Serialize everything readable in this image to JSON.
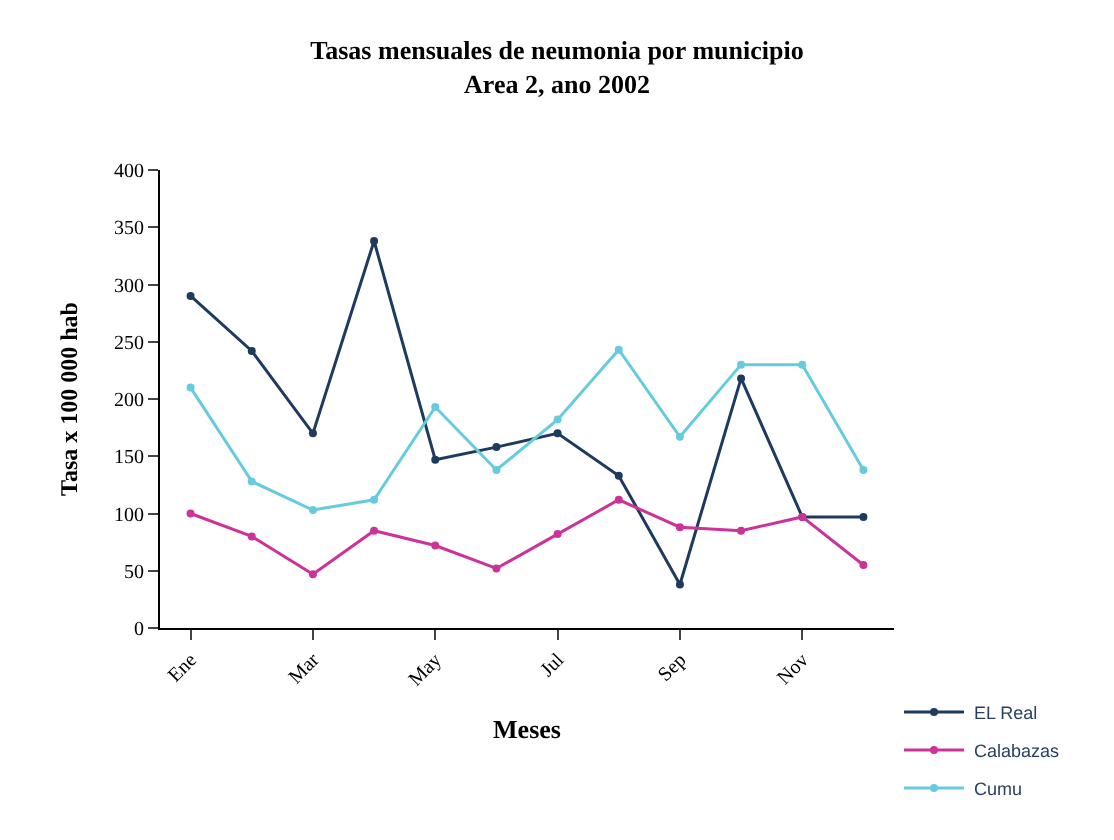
{
  "chart_data": {
    "type": "line",
    "title": "Tasas mensuales de neumonia por municipio",
    "subtitle": "Area 2, ano 2002",
    "xlabel": "Meses",
    "ylabel": "Tasa x 100 000 hab",
    "categories": [
      "Ene",
      null,
      "Mar",
      null,
      "May",
      null,
      "Jul",
      null,
      "Sep",
      null,
      "Nov",
      null
    ],
    "series": [
      {
        "name": "EL Real",
        "color": "#1f3a5f",
        "values": [
          290,
          242,
          170,
          338,
          147,
          158,
          170,
          133,
          38,
          218,
          97,
          97
        ]
      },
      {
        "name": "Calabazas",
        "color": "#cc3399",
        "values": [
          100,
          80,
          47,
          85,
          72,
          52,
          82,
          112,
          88,
          85,
          97,
          55
        ]
      },
      {
        "name": "Cumu",
        "color": "#66ccdd",
        "values": [
          210,
          128,
          103,
          112,
          193,
          138,
          182,
          243,
          167,
          230,
          230,
          138
        ]
      }
    ],
    "ylim": [
      0,
      400
    ],
    "yticks": [
      0,
      50,
      100,
      150,
      200,
      250,
      300,
      350,
      400
    ],
    "legend": "bottom right",
    "marker": "circle",
    "line_style": "solid"
  }
}
